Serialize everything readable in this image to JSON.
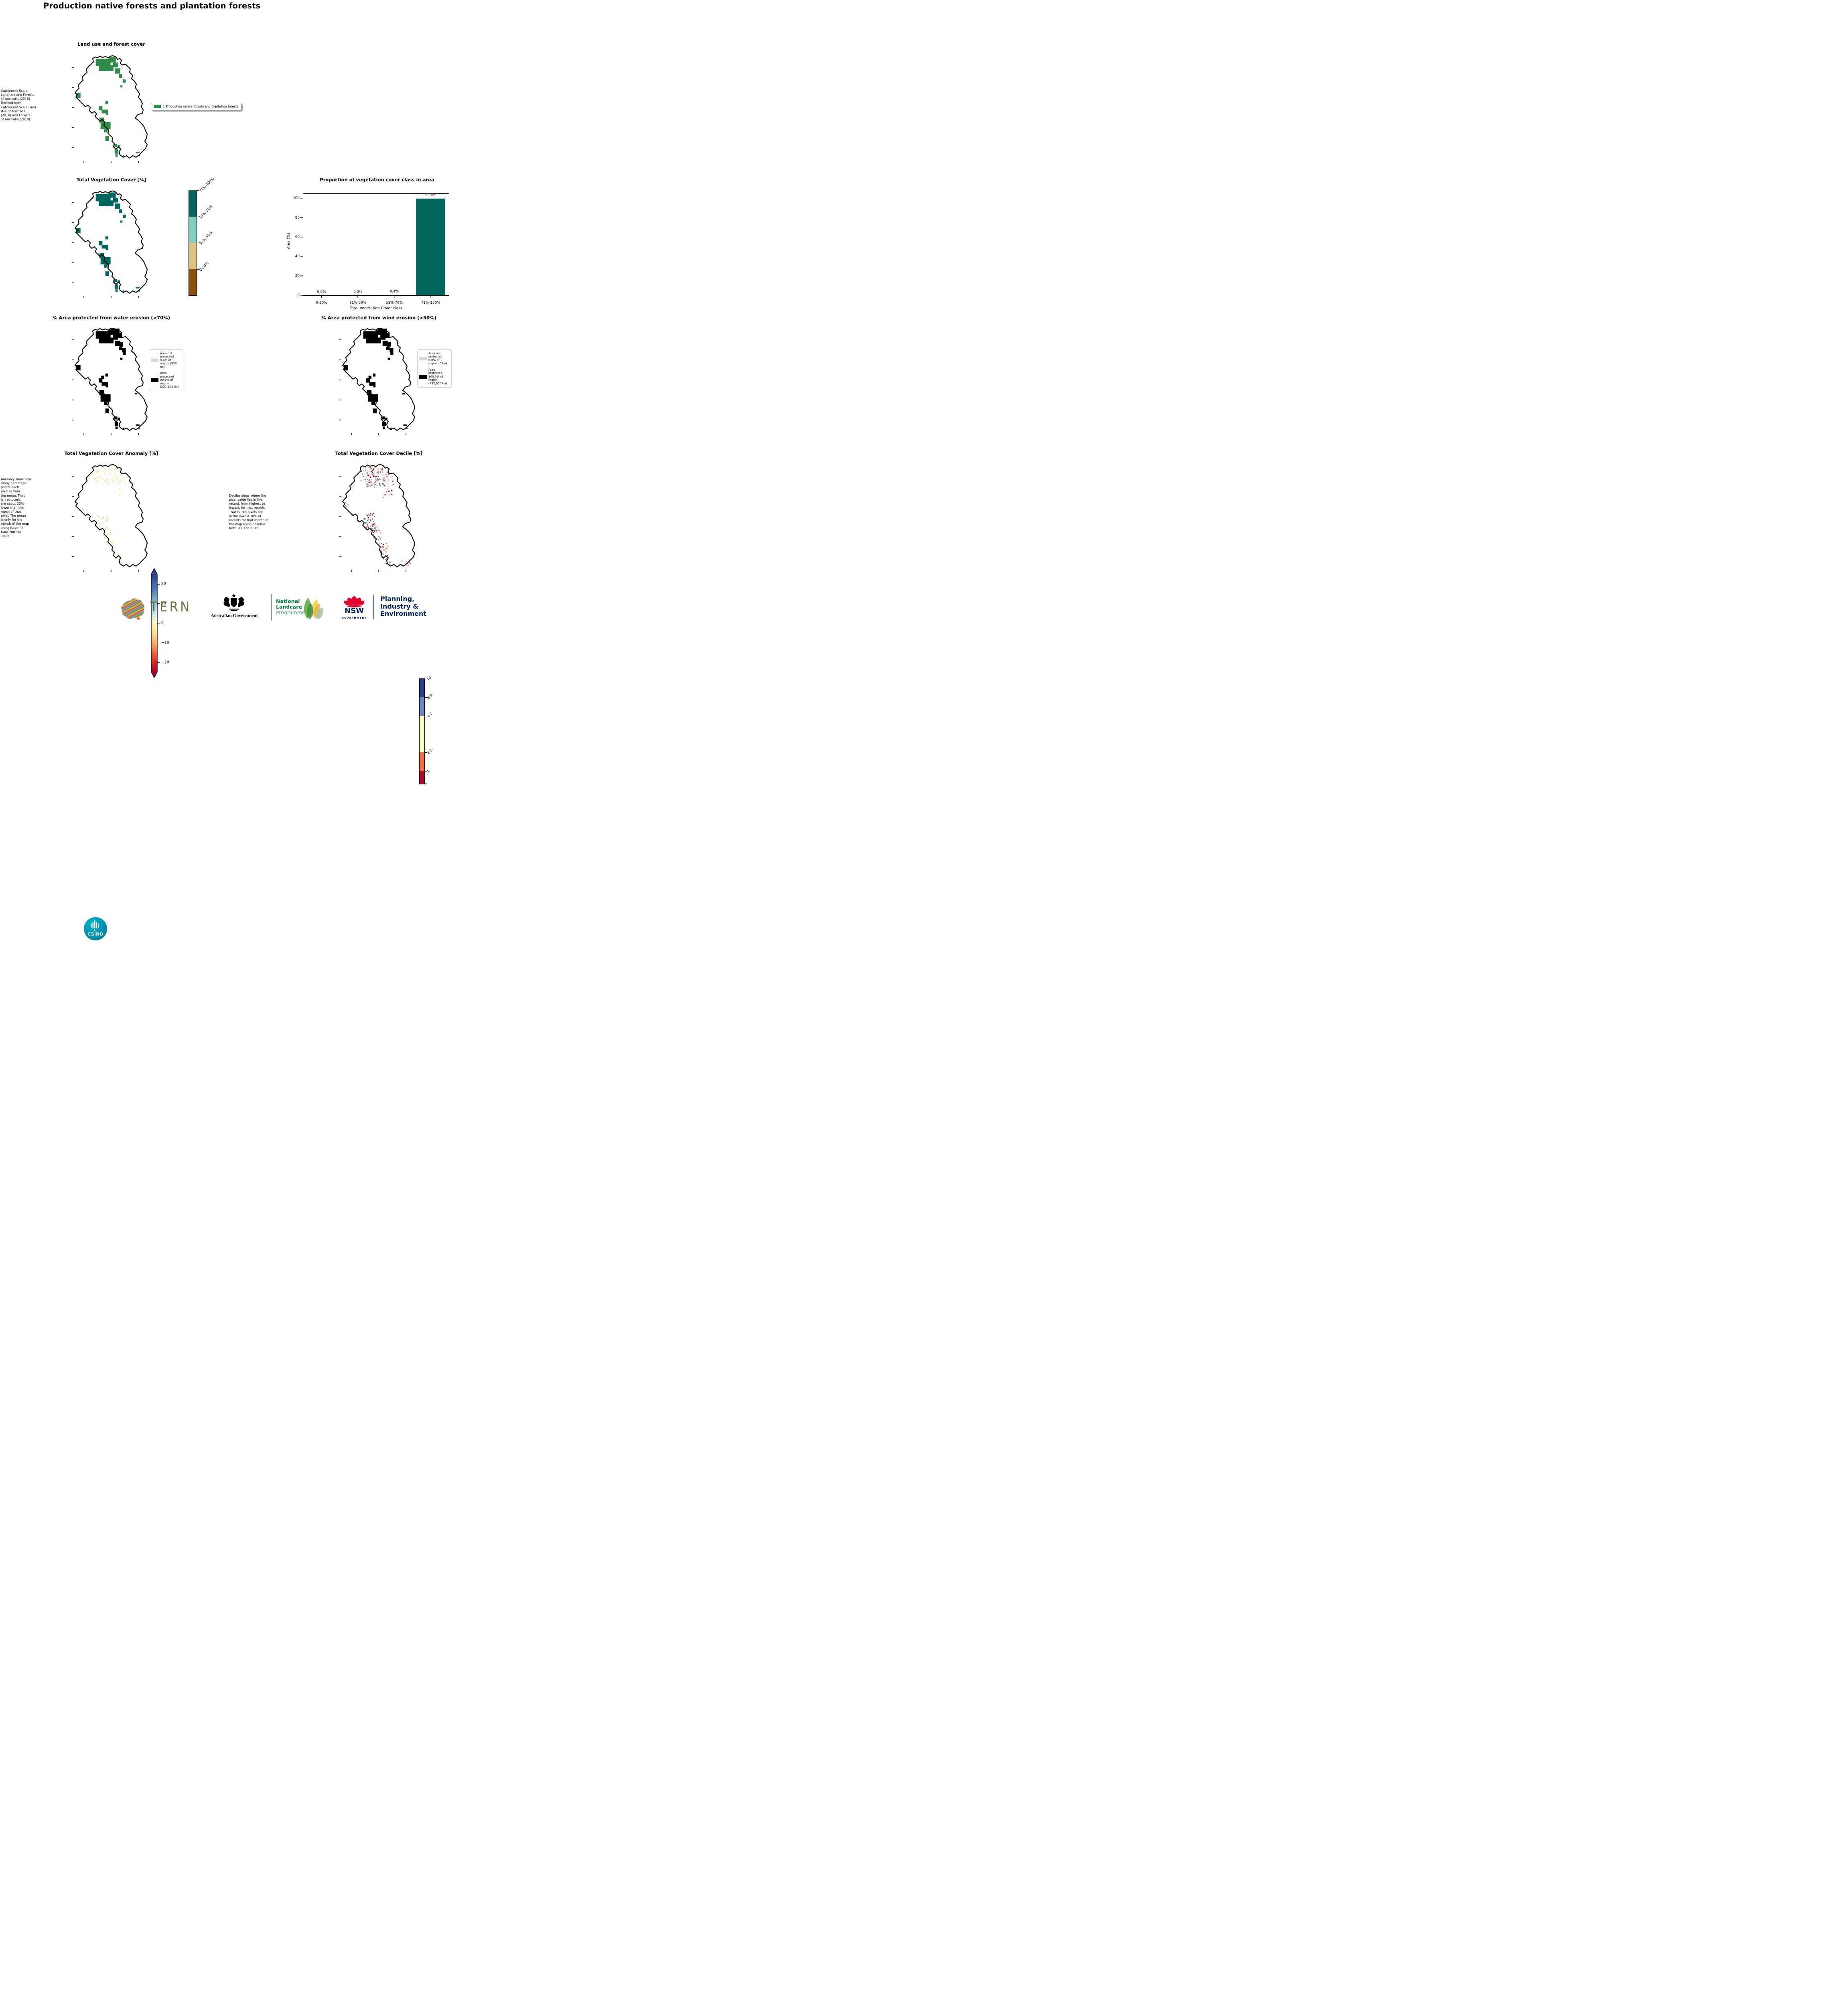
{
  "page_title": "Production native forests and plantation forests",
  "colors": {
    "landuse_green": "#2e8b49",
    "protected_black": "#000000",
    "not_protected_gray": "#d9d9d9",
    "bar_teal": "#01665e",
    "navy": "#002664",
    "landcare_green": "#00843d",
    "tern_olive": "#6b7540",
    "csiro_teal": "#0091ad",
    "waratah_red": "#e4002b"
  },
  "panels": {
    "landuse": {
      "title": "Land use and forest cover",
      "side_text": " Catchment Scale\nLand Use and Forests\nof Australia (2018)\nDerived from\nCatchment Scale Land\nUse of Australia\n(2018) and Forests\nof Australia (2018)",
      "legend_label": "1 Production native forests and plantation forests"
    },
    "tvc": {
      "title": "Total Vegetation Cover [%]",
      "colorbar": [
        {
          "label": "71%-100%",
          "color": "#01665e",
          "h": 25
        },
        {
          "label": "51%-70%",
          "color": "#80cdc1",
          "h": 25
        },
        {
          "label": "31%-50%",
          "color": "#dfc27d",
          "h": 25
        },
        {
          "label": "0-30%",
          "color": "#8c510a",
          "h": 25
        }
      ]
    },
    "water": {
      "title": "% Area protected from water erosion (>70%)",
      "legend": [
        {
          "swatch": "#d9d9d9",
          "label": "Area not protected 0.4% of region (928 ha)"
        },
        {
          "swatch": "#000000",
          "label": "Area protected 99.6% of region (231,121 ha)"
        }
      ]
    },
    "wind": {
      "title": "% Area protected from wind erosion (>50%)",
      "legend": [
        {
          "swatch": "#d9d9d9",
          "label": "Area not protected 0.0% of region (0 ha)"
        },
        {
          "swatch": "#000000",
          "label": "Area protected 100.0% of region (232,050 ha)"
        }
      ]
    },
    "anomaly": {
      "title": "Total Vegetation Cover Anomaly [%]",
      "side_text": "Anomaly show how\nmany percetage\npoints each\npixel is from\nthe mean. That\nis, red pixels\nare about 20%\nlower than the\nmean of that\npixel. The mean\nis only for the\nmonth of the map\nusing baseline\nfrom 2001 to\n2019.",
      "ticks": [
        {
          "v": "20",
          "p": 10
        },
        {
          "v": "10",
          "p": 30
        },
        {
          "v": "0",
          "p": 50
        },
        {
          "v": "−10",
          "p": 70
        },
        {
          "v": "−20",
          "p": 90
        }
      ]
    },
    "decile": {
      "title": "Total Vegetation Cover Decile [%]",
      "side_text": "Deciles show where the\npixel value lies in the\nrecord, from highest to\nlowest, for that month.\nThat is, red pixels are\nin the lowest 10% of\nrecords for that month of\nthe map using baseline\nfrom 2001 to 2019.",
      "colorbar": [
        {
          "label": "10",
          "color": "#2e3d8f",
          "h": 17.5
        },
        {
          "label": "8-9",
          "color": "#7288be",
          "h": 17.5
        },
        {
          "label": "4-7",
          "color": "#fdfdbe",
          "h": 35
        },
        {
          "label": "2-3",
          "color": "#ea7243",
          "h": 17.5
        },
        {
          "label": "1",
          "color": "#a50e28",
          "h": 12.5
        }
      ]
    }
  },
  "chart_data": {
    "type": "bar",
    "title": "Proportion of vegetation cover class in area",
    "categories": [
      "0-30%",
      "31%-50%",
      "51%-70%",
      "71%-100%"
    ],
    "values": [
      0.0,
      0.0,
      0.4,
      99.6
    ],
    "labels": [
      "0.0%",
      "0.0%",
      "0.4%",
      "99.6%"
    ],
    "colors": [
      "#8c510a",
      "#dfc27d",
      "#80cdc1",
      "#01665e"
    ],
    "xlabel": "Total Vegetation Cover class",
    "ylabel": "Area (%)",
    "yticks": [
      0,
      20,
      40,
      60,
      80,
      100
    ],
    "ylim": [
      0,
      104.6
    ],
    "grid": false,
    "legend": "none"
  },
  "map_shapes": {
    "green": [
      [
        0.29,
        0.04,
        0.2,
        0.07
      ],
      [
        0.33,
        0.1,
        0.2,
        0.055
      ],
      [
        0.46,
        0.025,
        0.1,
        0.05
      ],
      [
        0.52,
        0.075,
        0.07,
        0.045
      ],
      [
        0.55,
        0.13,
        0.07,
        0.05
      ],
      [
        0.6,
        0.185,
        0.045,
        0.035
      ],
      [
        0.655,
        0.235,
        0.04,
        0.03
      ],
      [
        0.62,
        0.29,
        0.03,
        0.02
      ],
      [
        0.025,
        0.36,
        0.06,
        0.05
      ],
      [
        0.42,
        0.44,
        0.035,
        0.028
      ],
      [
        0.33,
        0.485,
        0.05,
        0.04
      ],
      [
        0.37,
        0.52,
        0.085,
        0.035
      ],
      [
        0.425,
        0.55,
        0.03,
        0.02
      ],
      [
        0.34,
        0.595,
        0.06,
        0.05
      ],
      [
        0.355,
        0.635,
        0.135,
        0.07
      ],
      [
        0.4,
        0.705,
        0.05,
        0.03
      ],
      [
        0.42,
        0.77,
        0.05,
        0.045
      ],
      [
        0.54,
        0.845,
        0.04,
        0.028
      ],
      [
        0.585,
        0.855,
        0.03,
        0.022
      ],
      [
        0.545,
        0.895,
        0.05,
        0.04
      ],
      [
        0.555,
        0.94,
        0.03,
        0.025
      ],
      [
        0.83,
        0.92,
        0.05,
        0.012
      ],
      [
        0.86,
        0.95,
        0.028,
        0.01
      ],
      [
        0.655,
        0.95,
        0.016,
        0.012
      ]
    ],
    "protected": [
      [
        0.29,
        0.04,
        0.2,
        0.07
      ],
      [
        0.33,
        0.1,
        0.2,
        0.055
      ],
      [
        0.46,
        0.025,
        0.1,
        0.05
      ],
      [
        0.52,
        0.075,
        0.07,
        0.045
      ],
      [
        0.55,
        0.13,
        0.07,
        0.05
      ],
      [
        0.6,
        0.185,
        0.045,
        0.035
      ],
      [
        0.655,
        0.235,
        0.04,
        0.03
      ],
      [
        0.62,
        0.29,
        0.03,
        0.02
      ],
      [
        0.025,
        0.36,
        0.06,
        0.05
      ],
      [
        0.42,
        0.44,
        0.035,
        0.028
      ],
      [
        0.33,
        0.485,
        0.05,
        0.04
      ],
      [
        0.37,
        0.52,
        0.085,
        0.035
      ],
      [
        0.425,
        0.55,
        0.03,
        0.02
      ],
      [
        0.34,
        0.595,
        0.06,
        0.05
      ],
      [
        0.355,
        0.635,
        0.135,
        0.07
      ],
      [
        0.4,
        0.705,
        0.05,
        0.03
      ],
      [
        0.42,
        0.77,
        0.05,
        0.045
      ],
      [
        0.54,
        0.845,
        0.04,
        0.028
      ],
      [
        0.585,
        0.855,
        0.03,
        0.022
      ],
      [
        0.545,
        0.895,
        0.05,
        0.04
      ],
      [
        0.555,
        0.94,
        0.03,
        0.025
      ],
      [
        0.83,
        0.92,
        0.05,
        0.012
      ],
      [
        0.86,
        0.95,
        0.028,
        0.01
      ],
      [
        0.655,
        0.95,
        0.016,
        0.012
      ],
      [
        0.49,
        0.015,
        0.12,
        0.05
      ],
      [
        0.545,
        0.055,
        0.1,
        0.05
      ],
      [
        0.61,
        0.14,
        0.05,
        0.045
      ],
      [
        0.645,
        0.2,
        0.05,
        0.04
      ],
      [
        0.815,
        0.625,
        0.035,
        0.012
      ],
      [
        0.36,
        0.46,
        0.04,
        0.03
      ]
    ],
    "anomaly_scatter": [
      {
        "x": 0.24,
        "y": 0.03,
        "w": 0.38,
        "h": 0.16,
        "n": 90,
        "s": 2.2,
        "c": [
          "#fdf3b3",
          "#f9e9a0",
          "#fce8c0",
          "#f5d58a",
          "#fbf6d0"
        ]
      },
      {
        "x": 0.56,
        "y": 0.12,
        "w": 0.14,
        "h": 0.18,
        "n": 25,
        "s": 2.0,
        "c": [
          "#fdf3b3",
          "#f9e9a0",
          "#fce8c0"
        ]
      },
      {
        "x": 0.3,
        "y": 0.46,
        "w": 0.16,
        "h": 0.16,
        "n": 45,
        "s": 2.2,
        "c": [
          "#fdf3b3",
          "#e9f0e3",
          "#cfe0d8",
          "#f9e9a0"
        ]
      },
      {
        "x": 0.4,
        "y": 0.62,
        "w": 0.12,
        "h": 0.1,
        "n": 20,
        "s": 2.0,
        "c": [
          "#fdf3b3",
          "#f5d58a"
        ]
      },
      {
        "x": 0.45,
        "y": 0.72,
        "w": 0.1,
        "h": 0.14,
        "n": 12,
        "s": 2.0,
        "c": [
          "#fdf3b3",
          "#f5d58a"
        ]
      },
      {
        "x": 0.03,
        "y": 0.36,
        "w": 0.07,
        "h": 0.05,
        "n": 6,
        "s": 2.0,
        "c": [
          "#fdf3b3",
          "#fce8c0"
        ]
      },
      {
        "x": 0.55,
        "y": 0.84,
        "w": 0.1,
        "h": 0.1,
        "n": 8,
        "s": 2.0,
        "c": [
          "#fdf3b3",
          "#f9e9a0"
        ]
      }
    ],
    "decile_scatter": [
      {
        "x": 0.24,
        "y": 0.02,
        "w": 0.4,
        "h": 0.14,
        "n": 120,
        "s": 2.2,
        "c": [
          "#a50e28",
          "#ea7243",
          "#b9b9b9",
          "#7288be",
          "#fdfdbe",
          "#9b9b9b"
        ]
      },
      {
        "x": 0.3,
        "y": 0.14,
        "w": 0.3,
        "h": 0.08,
        "n": 40,
        "s": 2.2,
        "c": [
          "#a50e28",
          "#ea7243",
          "#b9b9b9",
          "#7288be"
        ]
      },
      {
        "x": 0.56,
        "y": 0.12,
        "w": 0.16,
        "h": 0.2,
        "n": 30,
        "s": 2.0,
        "c": [
          "#ea7243",
          "#a50e28",
          "#bbbbbb"
        ]
      },
      {
        "x": 0.02,
        "y": 0.35,
        "w": 0.08,
        "h": 0.06,
        "n": 8,
        "s": 2.0,
        "c": [
          "#bbbbbb",
          "#ea7243"
        ]
      },
      {
        "x": 0.3,
        "y": 0.46,
        "w": 0.16,
        "h": 0.16,
        "n": 60,
        "s": 2.2,
        "c": [
          "#7288be",
          "#2e3d8f",
          "#a50e28",
          "#ea7243",
          "#c9c9c9"
        ]
      },
      {
        "x": 0.4,
        "y": 0.62,
        "w": 0.12,
        "h": 0.1,
        "n": 25,
        "s": 2.0,
        "c": [
          "#7288be",
          "#2e3d8f",
          "#a50e28",
          "#ea7243"
        ]
      },
      {
        "x": 0.5,
        "y": 0.74,
        "w": 0.14,
        "h": 0.12,
        "n": 18,
        "s": 2.0,
        "c": [
          "#a50e28",
          "#ea7243"
        ]
      },
      {
        "x": 0.55,
        "y": 0.86,
        "w": 0.12,
        "h": 0.1,
        "n": 14,
        "s": 2.0,
        "c": [
          "#a50e28",
          "#ea7243",
          "#7288be"
        ]
      },
      {
        "x": 0.8,
        "y": 0.9,
        "w": 0.12,
        "h": 0.06,
        "n": 8,
        "s": 2.0,
        "c": [
          "#ea7243",
          "#a50e28"
        ]
      }
    ]
  },
  "footer": {
    "csiro": "CSIRO",
    "tern": "TERN",
    "aus_gov": "Australian Government",
    "landcare": [
      "National",
      "Landcare",
      "Programme"
    ],
    "nsw": "NSW",
    "nsw_gov": "GOVERNMENT",
    "planning": [
      "Planning,",
      "Industry &",
      "Environment"
    ]
  }
}
